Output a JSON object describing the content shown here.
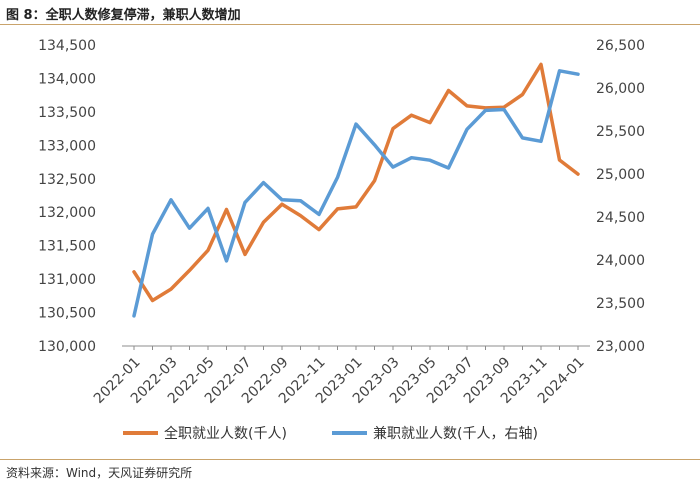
{
  "header": {
    "title": "图 8：全职人数修复停滞，兼职人数增加"
  },
  "footer": {
    "source": "资料来源：Wind，天风证券研究所"
  },
  "colors": {
    "fulltime": "#e07b39",
    "parttime": "#5b9bd5",
    "axis": "#8c8c8c"
  },
  "chart_data": {
    "type": "line",
    "title": "",
    "x": [
      "2022-01",
      "2022-02",
      "2022-03",
      "2022-04",
      "2022-05",
      "2022-06",
      "2022-07",
      "2022-08",
      "2022-09",
      "2022-10",
      "2022-11",
      "2022-12",
      "2023-01",
      "2023-02",
      "2023-03",
      "2023-04",
      "2023-05",
      "2023-06",
      "2023-07",
      "2023-08",
      "2023-09",
      "2023-10",
      "2023-11",
      "2023-12",
      "2024-01"
    ],
    "x_tick_labels": [
      "2022-01",
      "2022-03",
      "2022-05",
      "2022-07",
      "2022-09",
      "2022-11",
      "2023-01",
      "2023-03",
      "2023-05",
      "2023-07",
      "2023-09",
      "2023-11",
      "2024-01"
    ],
    "y_left": {
      "min": 130000,
      "max": 134500,
      "step": 500,
      "tick_labels": [
        "130,000",
        "130,500",
        "131,000",
        "131,500",
        "132,000",
        "132,500",
        "133,000",
        "133,500",
        "134,000",
        "134,500"
      ]
    },
    "y_right": {
      "min": 23000,
      "max": 26500,
      "step": 500,
      "tick_labels": [
        "23,000",
        "23,500",
        "24,000",
        "24,500",
        "25,000",
        "25,500",
        "26,000",
        "26,500"
      ]
    },
    "series": [
      {
        "name": "全职就业人数(千人)",
        "axis": "left",
        "values": [
          131110,
          130680,
          130850,
          131130,
          131430,
          132040,
          131370,
          131850,
          132120,
          131950,
          131740,
          132050,
          132080,
          132470,
          133250,
          133450,
          133340,
          133820,
          133590,
          133560,
          133570,
          133760,
          134210,
          132780,
          132570
        ]
      },
      {
        "name": "兼职就业人数(千人，右轴)",
        "axis": "right",
        "values": [
          23350,
          24300,
          24700,
          24370,
          24600,
          23990,
          24670,
          24900,
          24700,
          24690,
          24530,
          24960,
          25580,
          25340,
          25080,
          25190,
          25160,
          25070,
          25520,
          25740,
          25750,
          25420,
          25380,
          26200,
          26160
        ]
      }
    ],
    "legend": "bottom-center",
    "grid": false
  }
}
